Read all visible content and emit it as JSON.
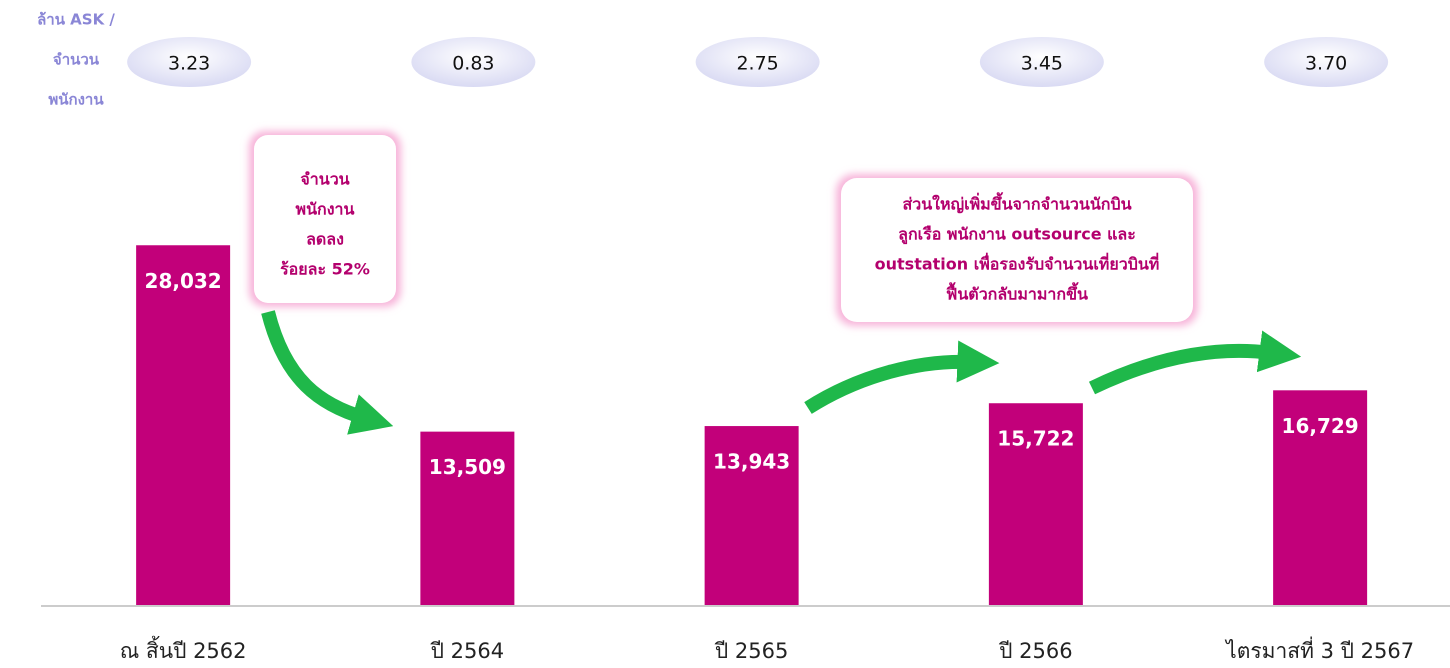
{
  "chart_data": {
    "type": "bar",
    "categories": [
      "ณ สิ้นปี 2562",
      "ปี 2564",
      "ปี 2565",
      "ปี 2566",
      "ไตรมาสที่ 3 ปี 2567"
    ],
    "values": [
      28032,
      13509,
      13943,
      15722,
      16729
    ],
    "value_labels": [
      "28,032",
      "13,509",
      "13,943",
      "15,722",
      "16,729"
    ],
    "color": "#c2007a",
    "ylim": [
      0,
      30000
    ],
    "ratio": {
      "label": [
        "ล้าน ASK /",
        "จำนวน",
        "พนักงาน"
      ],
      "values": [
        3.23,
        0.83,
        2.75,
        3.45,
        3.7
      ],
      "value_labels": [
        "3.23",
        "0.83",
        "2.75",
        "3.45",
        "3.70"
      ]
    },
    "annotations": [
      {
        "lines": [
          "จำนวน",
          "พนักงาน",
          "ลดลง",
          "ร้อยละ 52%"
        ]
      },
      {
        "lines": [
          "ส่วนใหญ่เพิ่มขึ้นจากจำนวนนักบิน",
          "ลูกเรือ พนักงาน outsource และ",
          "outstation เพื่อรองรับจำนวนเที่ยวบินที่",
          "ฟื้นตัวกลับมามากขึ้น"
        ]
      }
    ]
  }
}
